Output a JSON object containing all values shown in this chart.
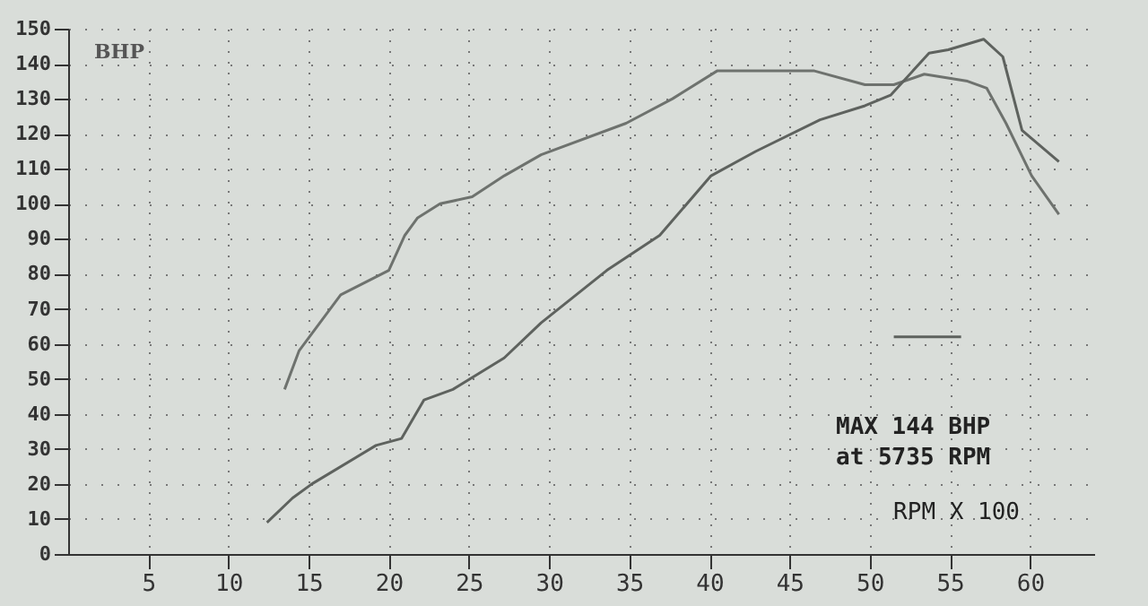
{
  "chart_data": {
    "type": "line",
    "ylabel": "BHP",
    "xlabel": "RPM X 100",
    "annotations": [
      "MAX 144 BHP",
      "at 5735 RPM"
    ],
    "xlim": [
      0,
      64
    ],
    "xticks": [
      5,
      10,
      15,
      20,
      25,
      30,
      35,
      40,
      45,
      50,
      55,
      60
    ],
    "ylim": [
      0,
      150
    ],
    "yticks": [
      0,
      10,
      20,
      30,
      40,
      50,
      60,
      70,
      80,
      90,
      100,
      110,
      120,
      130,
      140,
      150
    ],
    "grid": true,
    "marker": "none",
    "line_style": "solid",
    "series": [
      {
        "color": "#6e726e",
        "x": [
          13.5,
          14.4,
          17,
          20,
          21,
          21.8,
          23.2,
          25.2,
          27.2,
          29.5,
          34.8,
          37.7,
          40.5,
          46.5,
          49.7,
          51.5,
          53.4,
          56.1,
          57.3,
          58.5,
          60.1,
          61.8
        ],
        "values": [
          47,
          58,
          74,
          81,
          91,
          96,
          100,
          102,
          108,
          114,
          123,
          130,
          138,
          138,
          134,
          134,
          137,
          135,
          133,
          123,
          108,
          97
        ]
      },
      {
        "color": "#5e625e",
        "x": [
          12.4,
          14,
          15.2,
          19.2,
          20.8,
          22.2,
          24,
          27.2,
          29.5,
          33.6,
          36.9,
          40.1,
          42.9,
          46.9,
          49.7,
          51.3,
          53.7,
          54.9,
          57.1,
          58.3,
          59.5,
          61.8
        ],
        "values": [
          9,
          16,
          20,
          31,
          33,
          44,
          47,
          56,
          66,
          81,
          91,
          108,
          115,
          124,
          128,
          131,
          143,
          144,
          147,
          142,
          121,
          112
        ]
      },
      {
        "color": "#5e625e",
        "x": [
          51.5,
          55.7
        ],
        "values": [
          62,
          62
        ]
      }
    ]
  }
}
